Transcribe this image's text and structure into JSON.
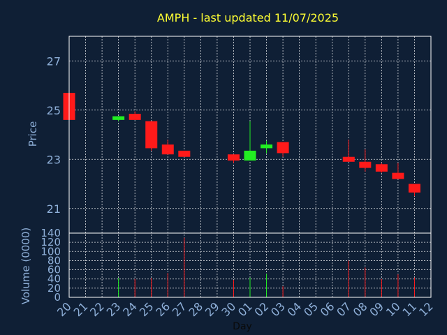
{
  "title": "AMPH - last updated 11/07/2025",
  "colors": {
    "background": "#0f1f35",
    "up": "#22ee22",
    "down": "#ff1a1a",
    "title": "#ffff33",
    "axis_text": "#8fb0d9",
    "grid": "#ffffff"
  },
  "chart_data": [
    {
      "type": "candlestick",
      "ylabel": "Price",
      "ylim": [
        20,
        28
      ],
      "yticks": [
        21,
        23,
        25,
        27
      ],
      "grid": true,
      "x_ticks": [
        "20",
        "21",
        "22",
        "23",
        "24",
        "25",
        "26",
        "27",
        "28",
        "29",
        "30",
        "01",
        "02",
        "03",
        "04",
        "05",
        "06",
        "07",
        "08",
        "09",
        "10",
        "11",
        "12"
      ],
      "candles": [
        {
          "day": "20",
          "open": 25.7,
          "close": 24.6,
          "high": 25.7,
          "low": 24.6
        },
        {
          "day": "23",
          "open": 24.6,
          "close": 24.75,
          "high": 24.75,
          "low": 24.55
        },
        {
          "day": "24",
          "open": 24.85,
          "close": 24.6,
          "high": 24.95,
          "low": 24.6
        },
        {
          "day": "25",
          "open": 24.55,
          "close": 23.45,
          "high": 24.55,
          "low": 23.35
        },
        {
          "day": "26",
          "open": 23.6,
          "close": 23.2,
          "high": 23.8,
          "low": 23.2
        },
        {
          "day": "27",
          "open": 23.35,
          "close": 23.1,
          "high": 23.35,
          "low": 23.1
        },
        {
          "day": "30",
          "open": 23.2,
          "close": 22.95,
          "high": 23.2,
          "low": 22.85
        },
        {
          "day": "01",
          "open": 22.95,
          "close": 23.35,
          "high": 24.55,
          "low": 22.95
        },
        {
          "day": "02",
          "open": 23.45,
          "close": 23.6,
          "high": 23.75,
          "low": 23.25
        },
        {
          "day": "03",
          "open": 23.7,
          "close": 23.25,
          "high": 23.7,
          "low": 23.1
        },
        {
          "day": "07",
          "open": 23.1,
          "close": 22.9,
          "high": 23.8,
          "low": 22.9
        },
        {
          "day": "08",
          "open": 22.9,
          "close": 22.65,
          "high": 23.4,
          "low": 22.5
        },
        {
          "day": "09",
          "open": 22.8,
          "close": 22.5,
          "high": 22.85,
          "low": 22.45
        },
        {
          "day": "10",
          "open": 22.45,
          "close": 22.2,
          "high": 22.85,
          "low": 22.2
        },
        {
          "day": "11",
          "open": 22.0,
          "close": 21.65,
          "high": 22.0,
          "low": 21.5
        }
      ]
    },
    {
      "type": "bar",
      "ylabel": "Volume (0000)",
      "xlabel": "Day",
      "ylim": [
        0,
        140
      ],
      "yticks": [
        0,
        20,
        40,
        60,
        80,
        100,
        120,
        140
      ],
      "grid": true,
      "bars": [
        {
          "day": "23",
          "value": 42,
          "dir": "up"
        },
        {
          "day": "24",
          "value": 40,
          "dir": "down"
        },
        {
          "day": "25",
          "value": 42,
          "dir": "down"
        },
        {
          "day": "26",
          "value": 53,
          "dir": "down"
        },
        {
          "day": "27",
          "value": 130,
          "dir": "down"
        },
        {
          "day": "30",
          "value": 38,
          "dir": "down"
        },
        {
          "day": "01",
          "value": 43,
          "dir": "up"
        },
        {
          "day": "02",
          "value": 51,
          "dir": "up"
        },
        {
          "day": "03",
          "value": 24,
          "dir": "down"
        },
        {
          "day": "07",
          "value": 80,
          "dir": "down"
        },
        {
          "day": "08",
          "value": 65,
          "dir": "down"
        },
        {
          "day": "09",
          "value": 40,
          "dir": "down"
        },
        {
          "day": "10",
          "value": 50,
          "dir": "down"
        },
        {
          "day": "11",
          "value": 43,
          "dir": "down"
        }
      ]
    }
  ]
}
